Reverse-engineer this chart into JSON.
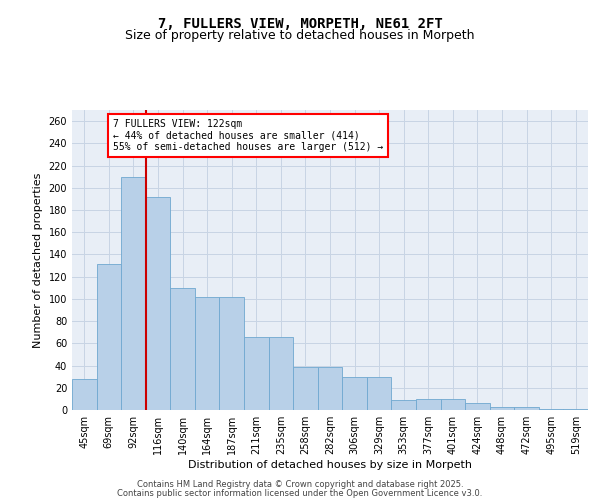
{
  "title": "7, FULLERS VIEW, MORPETH, NE61 2FT",
  "subtitle": "Size of property relative to detached houses in Morpeth",
  "xlabel": "Distribution of detached houses by size in Morpeth",
  "ylabel": "Number of detached properties",
  "categories": [
    "45sqm",
    "69sqm",
    "92sqm",
    "116sqm",
    "140sqm",
    "164sqm",
    "187sqm",
    "211sqm",
    "235sqm",
    "258sqm",
    "282sqm",
    "306sqm",
    "329sqm",
    "353sqm",
    "377sqm",
    "401sqm",
    "424sqm",
    "448sqm",
    "472sqm",
    "495sqm",
    "519sqm"
  ],
  "values": [
    28,
    131,
    210,
    192,
    110,
    102,
    102,
    66,
    66,
    39,
    39,
    30,
    30,
    9,
    10,
    10,
    6,
    3,
    3,
    1,
    1
  ],
  "bar_color": "#b8d0e8",
  "bar_edge_color": "#6fa8d0",
  "grid_color": "#c8d4e4",
  "background_color": "#e8eef6",
  "vline_color": "#cc0000",
  "vline_pos": 3.5,
  "annotation_text": "7 FULLERS VIEW: 122sqm\n← 44% of detached houses are smaller (414)\n55% of semi-detached houses are larger (512) →",
  "footer1": "Contains HM Land Registry data © Crown copyright and database right 2025.",
  "footer2": "Contains public sector information licensed under the Open Government Licence v3.0.",
  "ylim": [
    0,
    270
  ],
  "yticks": [
    0,
    20,
    40,
    60,
    80,
    100,
    120,
    140,
    160,
    180,
    200,
    220,
    240,
    260
  ],
  "title_fontsize": 10,
  "subtitle_fontsize": 9,
  "label_fontsize": 8,
  "tick_fontsize": 7,
  "ann_fontsize": 7,
  "footer_fontsize": 6
}
